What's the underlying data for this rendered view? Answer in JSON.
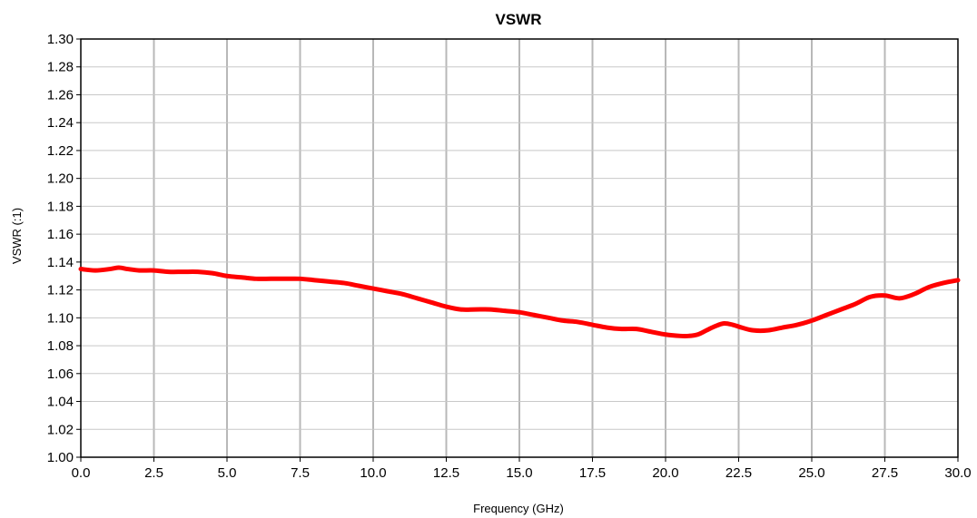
{
  "chart_data": {
    "type": "line",
    "title": "VSWR",
    "xlabel": "Frequency (GHz)",
    "ylabel": "VSWR (:1)",
    "xlim": [
      0,
      30
    ],
    "ylim": [
      1.0,
      1.3
    ],
    "x_ticks": [
      "0.0",
      "2.5",
      "5.0",
      "7.5",
      "10.0",
      "12.5",
      "15.0",
      "17.5",
      "20.0",
      "22.5",
      "25.0",
      "27.5",
      "30.0"
    ],
    "y_ticks": [
      "1.00",
      "1.02",
      "1.04",
      "1.06",
      "1.08",
      "1.10",
      "1.12",
      "1.14",
      "1.16",
      "1.18",
      "1.20",
      "1.22",
      "1.24",
      "1.26",
      "1.28",
      "1.30"
    ],
    "grid": {
      "x": true,
      "y": true
    },
    "legend": "none",
    "colors": {
      "series": "#ff0000",
      "grid_vertical": "#b8b8b8",
      "grid_horizontal": "#c8c8c8",
      "axis": "#000000"
    },
    "series": [
      {
        "x": [
          0,
          0.5,
          1.0,
          1.3,
          1.6,
          2.0,
          2.5,
          3.0,
          3.5,
          4.0,
          4.5,
          5.0,
          5.5,
          6.0,
          6.5,
          7.0,
          7.5,
          8.0,
          8.5,
          9.0,
          9.5,
          10.0,
          10.5,
          11.0,
          11.5,
          12.0,
          12.5,
          13.0,
          13.5,
          14.0,
          14.5,
          15.0,
          15.5,
          16.0,
          16.5,
          17.0,
          17.5,
          18.0,
          18.5,
          19.0,
          19.5,
          20.0,
          20.5,
          20.8,
          21.1,
          21.4,
          21.7,
          22.0,
          22.3,
          22.6,
          23.0,
          23.5,
          24.0,
          24.5,
          25.0,
          25.5,
          26.0,
          26.5,
          27.0,
          27.5,
          28.0,
          28.5,
          29.0,
          29.5,
          30.0
        ],
        "y": [
          1.135,
          1.134,
          1.135,
          1.136,
          1.135,
          1.134,
          1.134,
          1.133,
          1.133,
          1.133,
          1.132,
          1.13,
          1.129,
          1.128,
          1.128,
          1.128,
          1.128,
          1.127,
          1.126,
          1.125,
          1.123,
          1.121,
          1.119,
          1.117,
          1.114,
          1.111,
          1.108,
          1.106,
          1.106,
          1.106,
          1.105,
          1.104,
          1.102,
          1.1,
          1.098,
          1.097,
          1.095,
          1.093,
          1.092,
          1.092,
          1.09,
          1.088,
          1.087,
          1.087,
          1.088,
          1.091,
          1.094,
          1.096,
          1.095,
          1.093,
          1.091,
          1.091,
          1.093,
          1.095,
          1.098,
          1.102,
          1.106,
          1.11,
          1.115,
          1.116,
          1.114,
          1.117,
          1.122,
          1.125,
          1.127
        ]
      }
    ]
  }
}
